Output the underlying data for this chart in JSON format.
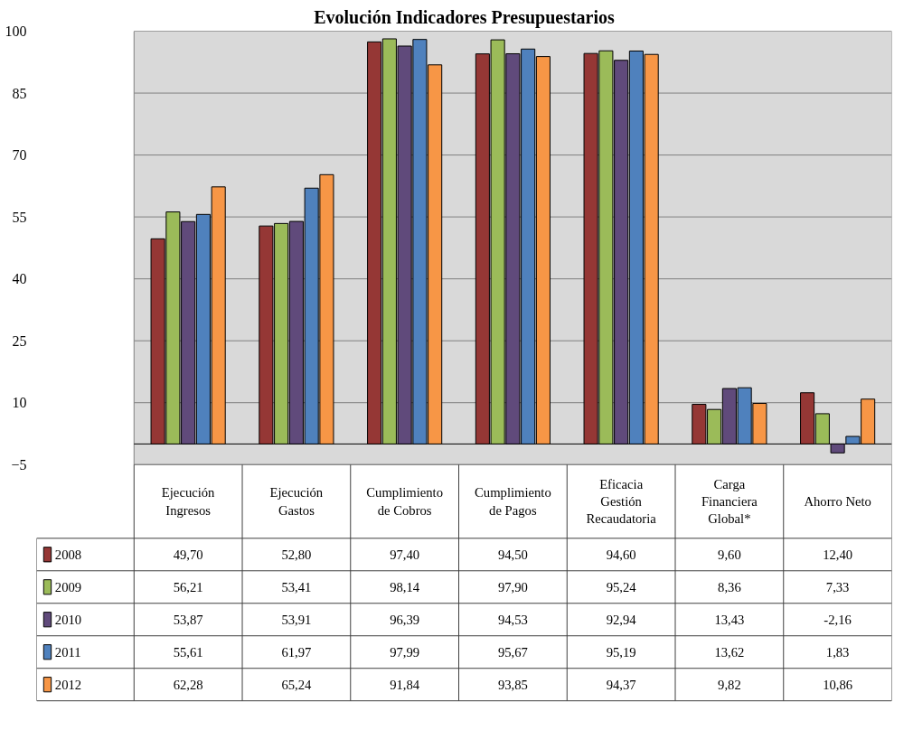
{
  "chart_data": {
    "type": "bar",
    "title": "Evolución Indicadores Presupuestarios",
    "categories": [
      "Ejecución Ingresos",
      "Ejecución Gastos",
      "Cumplimiento de Cobros",
      "Cumplimiento de Pagos",
      "Eficacia Gestión Recaudatoria",
      "Carga Financiera Global*",
      "Ahorro Neto"
    ],
    "series": [
      {
        "name": "2008",
        "color": "#953735",
        "values": [
          49.7,
          52.8,
          97.4,
          94.5,
          94.6,
          9.6,
          12.4
        ],
        "value_labels": [
          "49,70",
          "52,80",
          "97,40",
          "94,50",
          "94,60",
          "9,60",
          "12,40"
        ]
      },
      {
        "name": "2009",
        "color": "#9bbb59",
        "values": [
          56.21,
          53.41,
          98.14,
          97.9,
          95.24,
          8.36,
          7.33
        ],
        "value_labels": [
          "56,21",
          "53,41",
          "98,14",
          "97,90",
          "95,24",
          "8,36",
          "7,33"
        ]
      },
      {
        "name": "2010",
        "color": "#604a7b",
        "values": [
          53.87,
          53.91,
          96.39,
          94.53,
          92.94,
          13.43,
          -2.16
        ],
        "value_labels": [
          "53,87",
          "53,91",
          "96,39",
          "94,53",
          "92,94",
          "13,43",
          "-2,16"
        ]
      },
      {
        "name": "2011",
        "color": "#4f81bd",
        "values": [
          55.61,
          61.97,
          97.99,
          95.67,
          95.19,
          13.62,
          1.83
        ],
        "value_labels": [
          "55,61",
          "61,97",
          "97,99",
          "95,67",
          "95,19",
          "13,62",
          "1,83"
        ]
      },
      {
        "name": "2012",
        "color": "#f79646",
        "values": [
          62.28,
          65.24,
          91.84,
          93.85,
          94.37,
          9.82,
          10.86
        ],
        "value_labels": [
          "62,28",
          "65,24",
          "91,84",
          "93,85",
          "94,37",
          "9,82",
          "10,86"
        ]
      }
    ],
    "ylim": [
      -5,
      100
    ],
    "yticks": [
      -5,
      10,
      25,
      40,
      55,
      70,
      85,
      100
    ],
    "grid": "y",
    "legend": "bottom left"
  }
}
